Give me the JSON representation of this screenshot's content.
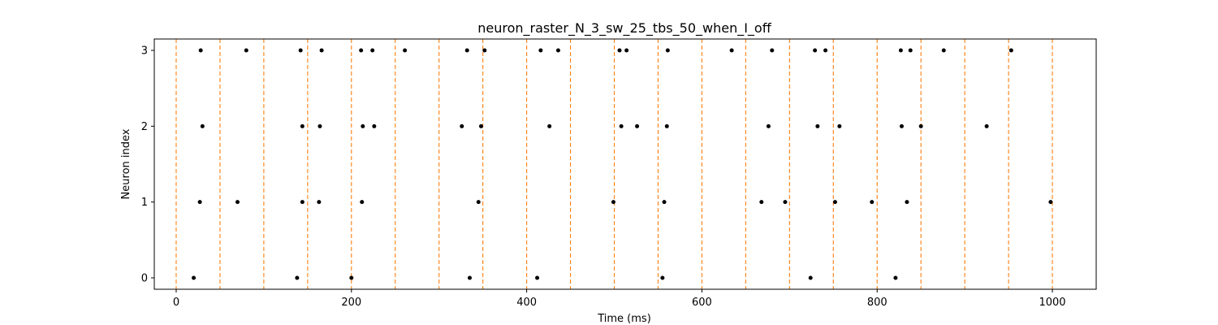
{
  "chart_data": {
    "type": "scatter",
    "title": "neuron_raster_N_3_sw_25_tbs_50_when_I_off",
    "xlabel": "Time (ms)",
    "ylabel": "Neuron index",
    "xlim": [
      -25,
      1050
    ],
    "ylim": [
      -0.15,
      3.15
    ],
    "xticks": [
      0,
      200,
      400,
      600,
      800,
      1000
    ],
    "yticks": [
      0,
      1,
      2,
      3
    ],
    "grid": false,
    "marker_color": "#000000",
    "vline_color": "#ff7f0e",
    "vlines": [
      0,
      50,
      100,
      150,
      200,
      250,
      300,
      350,
      400,
      450,
      500,
      550,
      600,
      650,
      700,
      750,
      800,
      850,
      900,
      950,
      1000
    ],
    "series": [
      {
        "neuron": 0,
        "spike_times": [
          20,
          138,
          200,
          335,
          412,
          555,
          724,
          821
        ]
      },
      {
        "neuron": 1,
        "spike_times": [
          27,
          70,
          144,
          163,
          212,
          345,
          499,
          557,
          668,
          695,
          752,
          794,
          834,
          998
        ]
      },
      {
        "neuron": 2,
        "spike_times": [
          30,
          144,
          164,
          213,
          226,
          326,
          348,
          426,
          508,
          526,
          560,
          676,
          732,
          757,
          828,
          850,
          925
        ]
      },
      {
        "neuron": 3,
        "spike_times": [
          28,
          80,
          142,
          166,
          211,
          224,
          261,
          332,
          352,
          416,
          436,
          506,
          514,
          561,
          634,
          680,
          729,
          741,
          827,
          838,
          876,
          953
        ]
      }
    ]
  }
}
